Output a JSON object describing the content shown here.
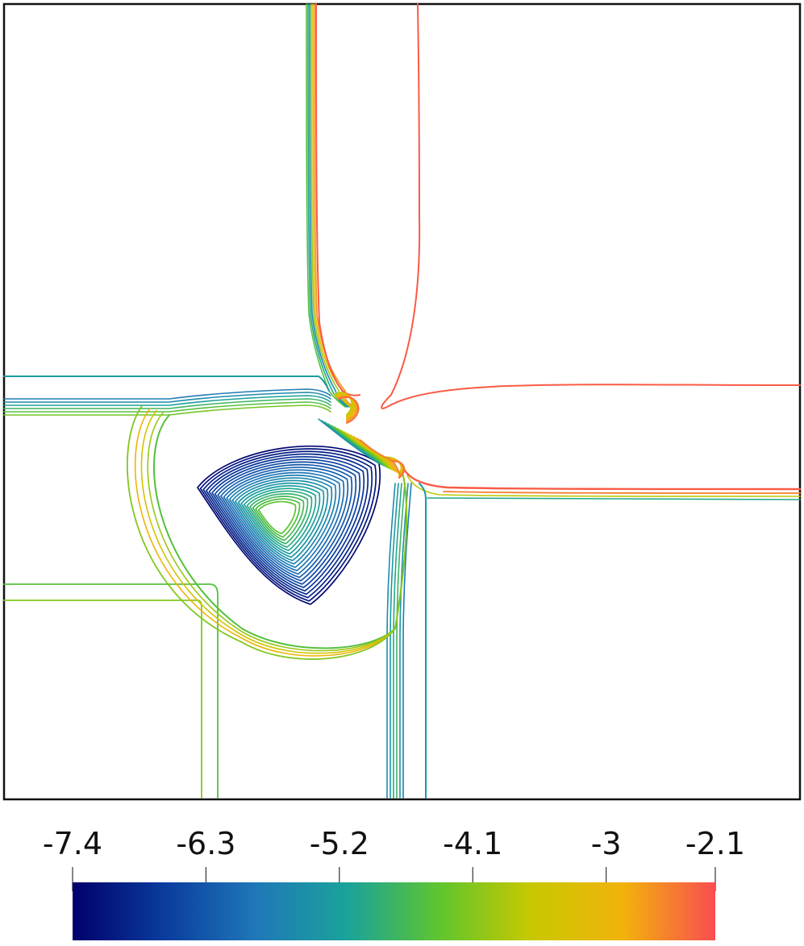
{
  "chart_data": {
    "type": "contour",
    "title": "",
    "colormap": {
      "name": "turbo-like",
      "stops": [
        "#00006b",
        "#0a3c9e",
        "#1f78b8",
        "#1aa39a",
        "#5fc52e",
        "#c8c800",
        "#f2b20c",
        "#fa4d50"
      ]
    },
    "colorbar": {
      "range": [
        -7.4,
        -2.1
      ],
      "ticks": [
        -7.4,
        -6.3,
        -5.2,
        -4.1,
        -3,
        -2.1
      ],
      "tick_labels": [
        "-7.4",
        "-6.3",
        "-5.2",
        "-4.1",
        "-3",
        "-2.1"
      ]
    },
    "contour_count": 30
  }
}
